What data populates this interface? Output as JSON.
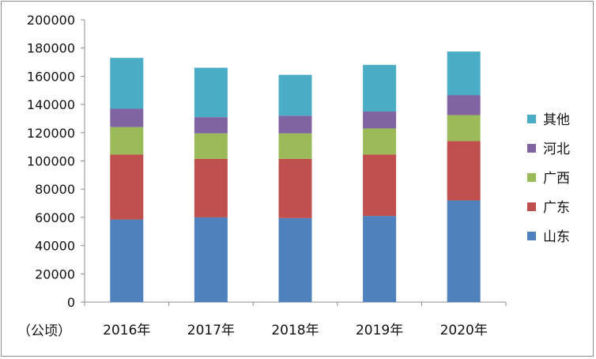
{
  "chart_data": {
    "type": "bar",
    "stacked": true,
    "categories": [
      "2016年",
      "2017年",
      "2018年",
      "2019年",
      "2020年"
    ],
    "series": [
      {
        "name": "山东",
        "color": "#4F81BD",
        "values": [
          58500,
          60000,
          59500,
          61000,
          72000
        ]
      },
      {
        "name": "广东",
        "color": "#C0504D",
        "values": [
          46000,
          41500,
          42000,
          43500,
          42000
        ]
      },
      {
        "name": "广西",
        "color": "#9BBB59",
        "values": [
          19500,
          18000,
          18000,
          18500,
          18500
        ]
      },
      {
        "name": "河北",
        "color": "#8064A2",
        "values": [
          13000,
          11500,
          12500,
          12000,
          14000
        ]
      },
      {
        "name": "其他",
        "color": "#4BACC6",
        "values": [
          36000,
          35000,
          29000,
          33000,
          31000
        ]
      }
    ],
    "ylim": [
      0,
      200000
    ],
    "yticks": [
      "0",
      "20000",
      "40000",
      "60000",
      "80000",
      "100000",
      "120000",
      "140000",
      "160000",
      "180000",
      "200000"
    ],
    "ylabel": "（公顷）",
    "legend_position": "right",
    "grid": false
  }
}
